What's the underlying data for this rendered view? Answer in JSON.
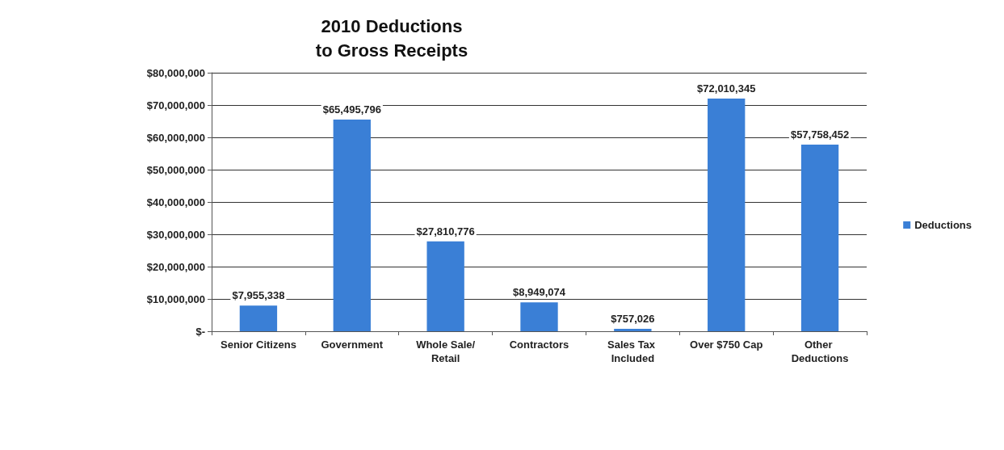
{
  "chart_data": {
    "type": "bar",
    "title": "2010 Deductions\nto Gross Receipts",
    "categories": [
      "Senior Citizens",
      "Government",
      "Whole Sale/Retail",
      "Contractors",
      "Sales Tax Included",
      "Over $750 Cap",
      "Other Deductions"
    ],
    "series": [
      {
        "name": "Deductions",
        "color": "#3a7fd6",
        "values": [
          7955338,
          65495796,
          27810776,
          8949074,
          757026,
          72010345,
          57758452
        ],
        "value_labels": [
          "$7,955,338",
          "$65,495,796",
          "$27,810,776",
          "$8,949,074",
          "$757,026",
          "$72,010,345",
          "$57,758,452"
        ]
      }
    ],
    "ylim": [
      0,
      80000000
    ],
    "yticks": [
      {
        "value": 0,
        "label": "$-"
      },
      {
        "value": 10000000,
        "label": "$10,000,000"
      },
      {
        "value": 20000000,
        "label": "$20,000,000"
      },
      {
        "value": 30000000,
        "label": "$30,000,000"
      },
      {
        "value": 40000000,
        "label": "$40,000,000"
      },
      {
        "value": 50000000,
        "label": "$50,000,000"
      },
      {
        "value": 60000000,
        "label": "$60,000,000"
      },
      {
        "value": 70000000,
        "label": "$70,000,000"
      },
      {
        "value": 80000000,
        "label": "$80,000,000"
      }
    ],
    "grid": "y",
    "legend": "right"
  }
}
